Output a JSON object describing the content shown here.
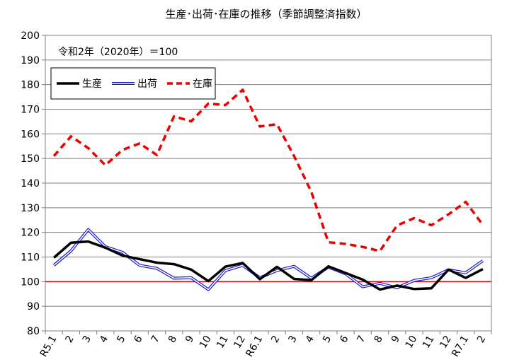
{
  "chart_data": {
    "type": "line",
    "title": "生産･出荷･在庫の推移（季節調整済指数）",
    "annotation": "令和2年（2020年）＝100",
    "ylim": [
      80,
      200
    ],
    "yticks": [
      80,
      90,
      100,
      110,
      120,
      130,
      140,
      150,
      160,
      170,
      180,
      190,
      200
    ],
    "reference_line": 100,
    "grid": true,
    "legend_position": "top-left",
    "categories": [
      "R5.1",
      "2",
      "3",
      "4",
      "5",
      "6",
      "7",
      "8",
      "9",
      "10",
      "11",
      "12",
      "R6.1",
      "2",
      "3",
      "4",
      "5",
      "6",
      "7",
      "8",
      "9",
      "10",
      "11",
      "12",
      "R7.1",
      "2"
    ],
    "series": [
      {
        "name": "生産",
        "color": "#000000",
        "style": "thick",
        "values": [
          109.7,
          115.8,
          116.3,
          113.8,
          110.6,
          109.1,
          107.7,
          107.1,
          104.9,
          100.2,
          106.1,
          107.6,
          101.0,
          106.0,
          101.1,
          100.6,
          106.2,
          103.5,
          100.8,
          96.8,
          98.4,
          97.0,
          97.3,
          104.9,
          101.5,
          105.1
        ]
      },
      {
        "name": "出荷",
        "color": "#1a1acc",
        "style": "double",
        "values": [
          106.6,
          112.5,
          121.1,
          114.2,
          111.9,
          106.6,
          105.4,
          101.4,
          101.6,
          96.8,
          104.5,
          106.6,
          101.6,
          104.5,
          106.2,
          101.4,
          105.9,
          103.2,
          97.9,
          99.3,
          97.5,
          100.5,
          101.6,
          104.8,
          103.6,
          108.5
        ]
      },
      {
        "name": "在庫",
        "color": "#ee0000",
        "style": "dashed",
        "values": [
          151.0,
          159.0,
          154.2,
          147.3,
          153.5,
          156.1,
          151.4,
          167.1,
          165.1,
          172.3,
          171.7,
          177.9,
          163.0,
          163.9,
          151.0,
          136.5,
          116.0,
          115.3,
          114.1,
          112.4,
          122.8,
          125.8,
          122.9,
          127.3,
          132.4,
          123.0
        ]
      }
    ]
  }
}
